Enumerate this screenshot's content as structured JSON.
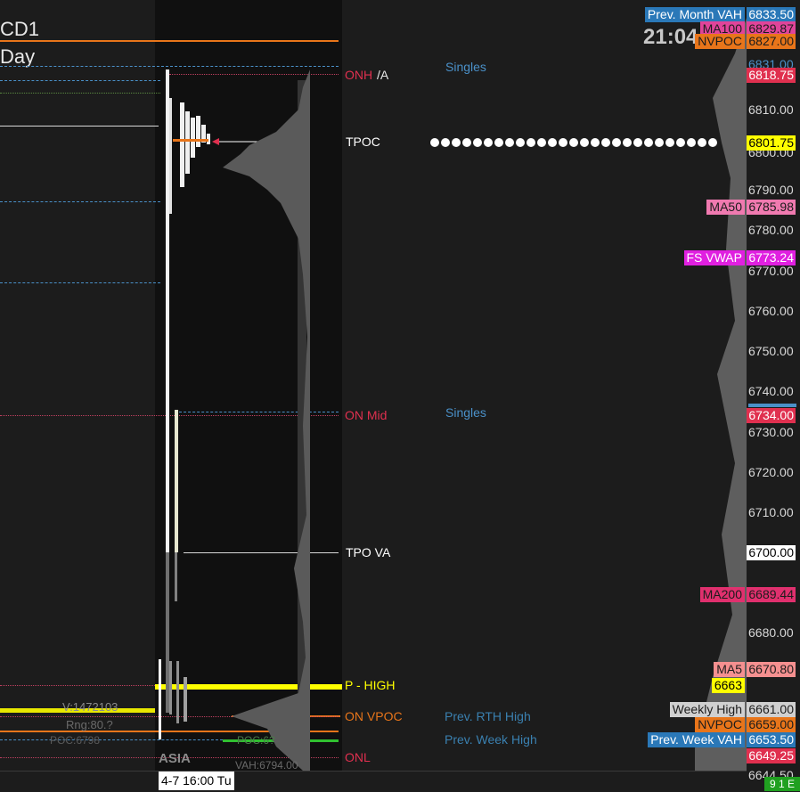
{
  "header": {
    "symbol_fragment": "CD1",
    "period_fragment": "Day",
    "clock": "21:04"
  },
  "chart_labels": {
    "onh": "ONH",
    "onh_suffix": "/A",
    "tpoc": "TPOC",
    "on_mid": "ON Mid",
    "tpo_va": "TPO VA",
    "p_high": "P - HIGH",
    "on_vpoc": "ON VPOC",
    "onl": "ONL",
    "singles_top": "Singles",
    "singles_mid": "Singles",
    "prev_rth_high": "Prev. RTH High",
    "prev_week_high": "Prev. Week High",
    "session": "ASIA",
    "vol_text": "V:1472103",
    "rng_text": "Rng:80.?",
    "poc_text": "POC:6798",
    "vah_text": "VAH:6794.00",
    "poc_mid_text": "POC:6?",
    "date_time": "4-7  16:00 Tu"
  },
  "price_axis": {
    "ticks": [
      "6810.00",
      "6790.00",
      "6780.00",
      "6770.00",
      "6760.00",
      "6750.00",
      "6740.00",
      "6730.00",
      "6720.00",
      "6710.00",
      "6680.00"
    ],
    "partial_ticks": [
      "6800.00",
      "6831.00",
      "6644.50"
    ]
  },
  "price_tags": [
    {
      "label": "Prev. Month VAH",
      "value": "6833.50",
      "label_bg": "#2a78b8",
      "value_bg": "#2a78b8",
      "label_fg": "#ffffff",
      "value_fg": "#ffffff"
    },
    {
      "label": "MA100",
      "value": "6829.87",
      "label_bg": "#e0449a",
      "value_bg": "#e0449a",
      "label_fg": "#1c1c1c",
      "value_fg": "#1c1c1c"
    },
    {
      "label": "NVPOC",
      "value": "6827.00",
      "label_bg": "#e8751a",
      "value_bg": "#e8751a",
      "label_fg": "#1c1c1c",
      "value_fg": "#1c1c1c"
    },
    {
      "label": "",
      "value": "6818.75",
      "label_bg": "",
      "value_bg": "#e0304f",
      "label_fg": "",
      "value_fg": "#ffffff"
    },
    {
      "label": "",
      "value": "6801.75",
      "label_bg": "",
      "value_bg": "#ffff00",
      "label_fg": "",
      "value_fg": "#000000"
    },
    {
      "label": "MA50",
      "value": "6785.98",
      "label_bg": "#f07ab0",
      "value_bg": "#f07ab0",
      "label_fg": "#1c1c1c",
      "value_fg": "#1c1c1c"
    },
    {
      "label": "FS VWAP",
      "value": "6773.24",
      "label_bg": "#e020e0",
      "value_bg": "#e020e0",
      "label_fg": "#ffffff",
      "value_fg": "#ffffff"
    },
    {
      "label": "",
      "value": "6734.00",
      "label_bg": "",
      "value_bg": "#e0304f",
      "label_fg": "",
      "value_fg": "#ffffff"
    },
    {
      "label": "",
      "value": "6700.00",
      "label_bg": "",
      "value_bg": "#ffffff",
      "label_fg": "",
      "value_fg": "#000000"
    },
    {
      "label": "MA200",
      "value": "6689.44",
      "label_bg": "#e0306e",
      "value_bg": "#e0306e",
      "label_fg": "#1c1c1c",
      "value_fg": "#1c1c1c"
    },
    {
      "label": "MA5",
      "value": "6670.80",
      "label_bg": "#f59090",
      "value_bg": "#f59090",
      "label_fg": "#1c1c1c",
      "value_fg": "#1c1c1c"
    },
    {
      "label": "6663",
      "value": "",
      "label_bg": "#ffff00",
      "value_bg": "",
      "label_fg": "#000000",
      "value_fg": ""
    },
    {
      "label": "Weekly High",
      "value": "6661.00",
      "label_bg": "#d0d0d0",
      "value_bg": "#d0d0d0",
      "label_fg": "#1c1c1c",
      "value_fg": "#1c1c1c"
    },
    {
      "label": "NVPOC",
      "value": "6659.00",
      "label_bg": "#e8751a",
      "value_bg": "#e8751a",
      "label_fg": "#1c1c1c",
      "value_fg": "#1c1c1c"
    },
    {
      "label": "Prev. Week VAH",
      "value": "6653.50",
      "label_bg": "#2a78b8",
      "value_bg": "#2a78b8",
      "label_fg": "#ffffff",
      "value_fg": "#ffffff"
    },
    {
      "label": "",
      "value": "6649.25",
      "label_bg": "",
      "value_bg": "#e0304f",
      "label_fg": "",
      "value_fg": "#ffffff"
    }
  ],
  "status": {
    "text": "9 1 E"
  },
  "colors": {
    "background": "#1c1c1c",
    "profile_panel": "#101010",
    "accent_red": "#e0304f",
    "accent_yellow": "#ffff00",
    "accent_orange": "#e8751a",
    "singles_blue": "#4a90c8"
  }
}
